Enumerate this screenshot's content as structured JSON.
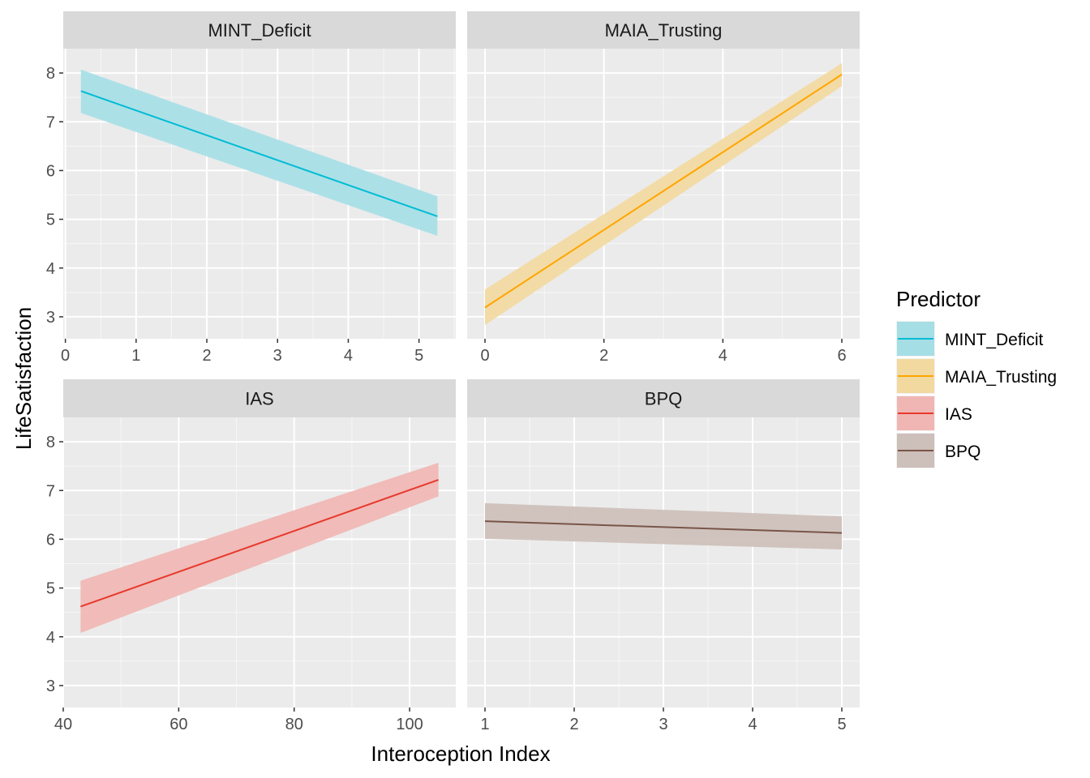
{
  "chart_data": {
    "type": "line",
    "xlabel": "Interoception Index",
    "ylabel": "LifeSatisfaction",
    "ylim": [
      2.55,
      8.5
    ],
    "yticks": [
      3,
      4,
      5,
      6,
      7,
      8
    ],
    "grid": true,
    "legend": {
      "title": "Predictor",
      "position": "right",
      "entries": [
        "MINT_Deficit",
        "MAIA_Trusting",
        "IAS",
        "BPQ"
      ]
    },
    "panels": [
      {
        "name": "MINT_Deficit",
        "color": "#00BCD4",
        "fill": "#A6DEE6",
        "xlim": [
          -0.03,
          5.52
        ],
        "xticks": [
          0,
          1,
          2,
          3,
          4,
          5
        ],
        "x": [
          0.22,
          5.26
        ],
        "y": [
          7.63,
          5.06
        ],
        "ci_low": [
          7.18,
          4.66
        ],
        "ci_high": [
          8.07,
          5.47
        ]
      },
      {
        "name": "MAIA_Trusting",
        "color": "#FFA500",
        "fill": "#F2D9A0",
        "xlim": [
          -0.3,
          6.3
        ],
        "xticks": [
          0,
          2,
          4,
          6
        ],
        "x": [
          0,
          6
        ],
        "y": [
          3.19,
          7.97
        ],
        "ci_low": [
          2.83,
          7.73
        ],
        "ci_high": [
          3.56,
          8.2
        ]
      },
      {
        "name": "IAS",
        "color": "#E8392D",
        "fill": "#F0B6B3",
        "xlim": [
          40,
          108
        ],
        "xticks": [
          40,
          60,
          80,
          100
        ],
        "x": [
          43,
          105
        ],
        "y": [
          4.62,
          7.22
        ],
        "ci_low": [
          4.08,
          6.88
        ],
        "ci_high": [
          5.15,
          7.57
        ]
      },
      {
        "name": "BPQ",
        "color": "#795548",
        "fill": "#CDBFBA",
        "xlim": [
          0.8,
          5.2
        ],
        "xticks": [
          1,
          2,
          3,
          4,
          5
        ],
        "x": [
          1,
          5
        ],
        "y": [
          6.37,
          6.13
        ],
        "ci_low": [
          6.01,
          5.79
        ],
        "ci_high": [
          6.74,
          6.47
        ]
      }
    ]
  }
}
